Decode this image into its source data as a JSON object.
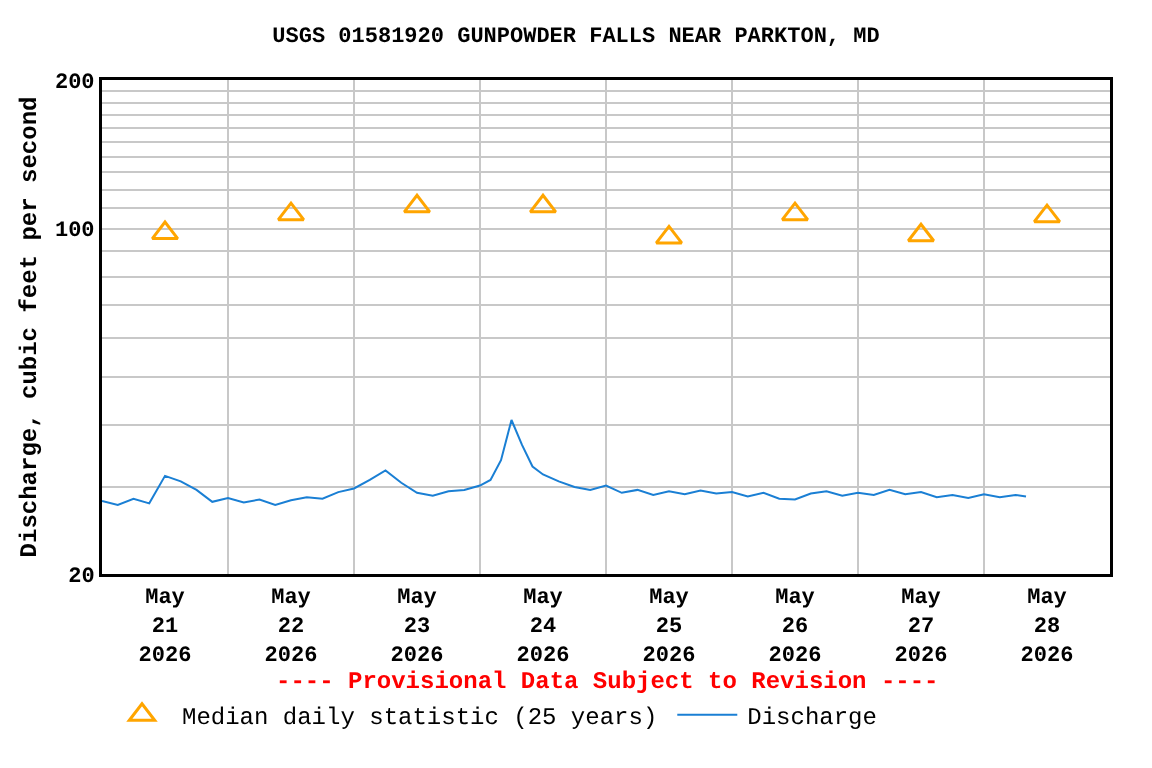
{
  "chart_data": {
    "type": "line",
    "title": "USGS 01581920 GUNPOWDER FALLS NEAR PARKTON, MD",
    "ylabel": "Discharge, cubic feet per second",
    "annotations": [
      "---- Provisional Data Subject to Revision ----"
    ],
    "log": "y",
    "grid": true,
    "legend": "bottom left",
    "xlim": [
      "2026-05-21T00:00",
      "2026-05-29T00:00"
    ],
    "xticks": [
      {
        "value": "2026-05-21T12:00",
        "label": "May\n21\n2026"
      },
      {
        "value": "2026-05-22T00:00",
        "label": null
      },
      {
        "value": "2026-05-22T12:00",
        "label": "May\n22\n2026"
      },
      {
        "value": "2026-05-23T00:00",
        "label": null
      },
      {
        "value": "2026-05-23T12:00",
        "label": "May\n23\n2026"
      },
      {
        "value": "2026-05-24T00:00",
        "label": null
      },
      {
        "value": "2026-05-24T12:00",
        "label": "May\n24\n2026"
      },
      {
        "value": "2026-05-25T00:00",
        "label": null
      },
      {
        "value": "2026-05-25T12:00",
        "label": "May\n25\n2026"
      },
      {
        "value": "2026-05-26T00:00",
        "label": null
      },
      {
        "value": "2026-05-26T12:00",
        "label": "May\n26\n2026"
      },
      {
        "value": "2026-05-27T00:00",
        "label": null
      },
      {
        "value": "2026-05-27T12:00",
        "label": "May\n27\n2026"
      },
      {
        "value": "2026-05-28T00:00",
        "label": null
      },
      {
        "value": "2026-05-28T12:00",
        "label": "May\n28\n2026"
      }
    ],
    "ylim": [
      20,
      200
    ],
    "yticks": [
      20,
      {
        "value": 30,
        "label": null
      },
      {
        "value": 40,
        "label": null
      },
      {
        "value": 50,
        "label": null
      },
      {
        "value": 60,
        "label": null
      },
      {
        "value": 70,
        "label": null
      },
      {
        "value": 80,
        "label": null
      },
      {
        "value": 90,
        "label": null
      },
      100,
      {
        "value": 110,
        "label": null
      },
      {
        "value": 120,
        "label": null
      },
      {
        "value": 130,
        "label": null
      },
      {
        "value": 140,
        "label": null
      },
      {
        "value": 150,
        "label": null
      },
      {
        "value": 160,
        "label": null
      },
      {
        "value": 170,
        "label": null
      },
      {
        "value": 180,
        "label": null
      },
      {
        "value": 190,
        "label": null
      },
      200
    ],
    "series": [
      {
        "name": "Median daily statistic (25 years)",
        "type": "scatter",
        "marker": "triangle",
        "color": "#ffa500",
        "x": [
          "2026-05-21T12:00",
          "2026-05-22T12:00",
          "2026-05-23T12:00",
          "2026-05-24T12:00",
          "2026-05-25T12:00",
          "2026-05-26T12:00",
          "2026-05-27T12:00",
          "2026-05-28T12:00"
        ],
        "values": [
          98,
          107,
          111,
          111,
          96,
          107,
          97,
          106
        ]
      },
      {
        "name": "Discharge",
        "color": "#1a7fd4",
        "x": [
          "2026-05-21T00:00",
          "2026-05-21T03:00",
          "2026-05-21T06:00",
          "2026-05-21T09:00",
          "2026-05-21T12:00",
          "2026-05-21T15:00",
          "2026-05-21T18:00",
          "2026-05-21T21:00",
          "2026-05-22T00:00",
          "2026-05-22T03:00",
          "2026-05-22T06:00",
          "2026-05-22T09:00",
          "2026-05-22T12:00",
          "2026-05-22T15:00",
          "2026-05-22T18:00",
          "2026-05-22T21:00",
          "2026-05-23T00:00",
          "2026-05-23T03:00",
          "2026-05-23T06:00",
          "2026-05-23T09:00",
          "2026-05-23T12:00",
          "2026-05-23T15:00",
          "2026-05-23T18:00",
          "2026-05-23T21:00",
          "2026-05-24T00:00",
          "2026-05-24T02:00",
          "2026-05-24T04:00",
          "2026-05-24T06:00",
          "2026-05-24T08:00",
          "2026-05-24T10:00",
          "2026-05-24T12:00",
          "2026-05-24T15:00",
          "2026-05-24T18:00",
          "2026-05-24T21:00",
          "2026-05-25T00:00",
          "2026-05-25T03:00",
          "2026-05-25T06:00",
          "2026-05-25T09:00",
          "2026-05-25T12:00",
          "2026-05-25T15:00",
          "2026-05-25T18:00",
          "2026-05-25T21:00",
          "2026-05-26T00:00",
          "2026-05-26T03:00",
          "2026-05-26T06:00",
          "2026-05-26T09:00",
          "2026-05-26T12:00",
          "2026-05-26T15:00",
          "2026-05-26T18:00",
          "2026-05-26T21:00",
          "2026-05-27T00:00",
          "2026-05-27T03:00",
          "2026-05-27T06:00",
          "2026-05-27T09:00",
          "2026-05-27T12:00",
          "2026-05-27T15:00",
          "2026-05-27T18:00",
          "2026-05-27T21:00",
          "2026-05-28T00:00",
          "2026-05-28T03:00",
          "2026-05-28T06:00",
          "2026-05-28T08:00"
        ],
        "values": [
          28.1,
          27.6,
          28.4,
          27.8,
          31.6,
          30.8,
          29.6,
          28.0,
          28.5,
          27.9,
          28.3,
          27.6,
          28.2,
          28.6,
          28.4,
          29.3,
          29.8,
          31.0,
          32.4,
          30.6,
          29.2,
          28.8,
          29.4,
          29.6,
          30.2,
          31.0,
          34.0,
          41.0,
          36.5,
          33.0,
          31.8,
          30.8,
          30.0,
          29.6,
          30.2,
          29.2,
          29.6,
          28.9,
          29.4,
          29.0,
          29.5,
          29.1,
          29.3,
          28.7,
          29.2,
          28.4,
          28.3,
          29.1,
          29.4,
          28.8,
          29.2,
          28.9,
          29.6,
          29.0,
          29.3,
          28.6,
          28.9,
          28.5,
          29.0,
          28.6,
          28.9,
          28.7
        ]
      }
    ]
  }
}
